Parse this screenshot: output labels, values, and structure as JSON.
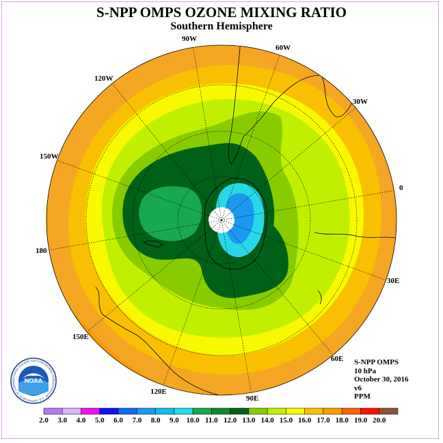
{
  "header": {
    "title": "S-NPP OMPS OZONE MIXING RATIO",
    "subtitle": "Southern Hemisphere"
  },
  "map": {
    "projection": "south-polar-stereographic",
    "longitude_labels": [
      "90W",
      "60W",
      "30W",
      "0",
      "30E",
      "60E",
      "90E",
      "120E",
      "150E",
      "180",
      "150W",
      "120W"
    ],
    "background_colors": {
      "ocean_outer": "#f5a623",
      "land_outline": "#000000"
    }
  },
  "info": {
    "instrument": "S-NPP OMPS",
    "level": "10 hPa",
    "date": "October 30, 2016",
    "version": "v6",
    "units": "PPM"
  },
  "logo": {
    "text": "NOAA",
    "ring_text": "NATIONAL OCEANIC AND ATMOSPHERIC ADMINISTRATION · U.S. DEPARTMENT OF COMMERCE"
  },
  "legend": {
    "ticks": [
      "2.0",
      "3.0",
      "4.0",
      "5.0",
      "6.0",
      "7.0",
      "8.0",
      "9.0",
      "10.0",
      "11.0",
      "12.0",
      "13.0",
      "14.0",
      "15.0",
      "16.0",
      "17.0",
      "18.0",
      "19.0",
      "20.0"
    ],
    "colors": [
      "#b478f0",
      "#d8b4f8",
      "#f010f0",
      "#1010f0",
      "#1068f0",
      "#1c98f0",
      "#18b8f0",
      "#28d8e8",
      "#18a850",
      "#10882c",
      "#006018",
      "#88cc00",
      "#c0f000",
      "#f8f800",
      "#f8c000",
      "#f89c00",
      "#f86400",
      "#f81000",
      "#8c5438"
    ]
  }
}
